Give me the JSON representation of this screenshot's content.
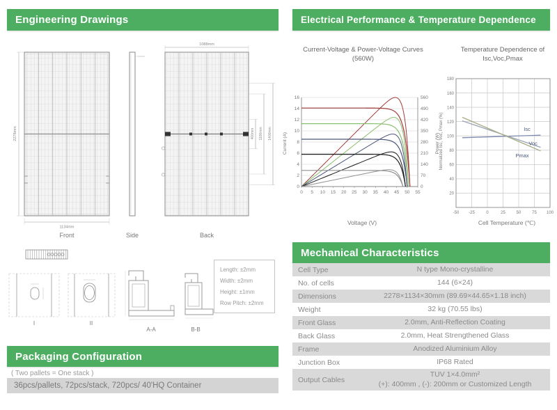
{
  "sections": {
    "engineering_drawings": {
      "title": "Engineering Drawings"
    },
    "electrical": {
      "title": "Electrical Performance & Temperature Dependence"
    },
    "mechanical": {
      "title": "Mechanical Characteristics"
    },
    "packaging": {
      "title": "Packaging Configuration",
      "note": "( Two pallets = One stack )",
      "detail": "36pcs/pallets, 72pcs/stack, 720pcs/ 40'HQ Container"
    }
  },
  "drawings": {
    "front": {
      "caption": "Front",
      "height_dim": "2278mm",
      "width_dim": "1134mm"
    },
    "side": {
      "caption": "Side"
    },
    "back": {
      "caption": "Back",
      "top_dim": "1088mm",
      "right_dims": [
        "400mm",
        "1100mm",
        "1400mm"
      ]
    },
    "details": {
      "i": "I",
      "ii": "II",
      "aa": "A-A",
      "bb": "B-B"
    },
    "tolerances": [
      "Length: ±2mm",
      "Width: ±2mm",
      "Height: ±1mm",
      "Row Pitch: ±2mm"
    ]
  },
  "mech_table": {
    "rows": [
      {
        "label": "Cell Type",
        "value": "N type Mono-crystalline"
      },
      {
        "label": "No. of cells",
        "value": "144 (6×24)"
      },
      {
        "label": "Dimensions",
        "value": "2278×1134×30mm (89.69×44.65×1.18 inch)"
      },
      {
        "label": "Weight",
        "value": "32 kg (70.55 lbs)"
      },
      {
        "label": "Front Glass",
        "value": "2.0mm, Anti-Reflection Coating"
      },
      {
        "label": "Back Glass",
        "value": "2.0mm, Heat Strengthened Glass"
      },
      {
        "label": "Frame",
        "value": "Anodized Aluminium Alloy"
      },
      {
        "label": "Junction Box",
        "value": "IP68 Rated"
      },
      {
        "label": "Output Cables",
        "value": "TUV  1×4.0mm²",
        "value2": "(+): 400mm , (-): 200mm or Customized Length"
      }
    ]
  },
  "chart_data": [
    {
      "type": "line",
      "title": "Current-Voltage & Power-Voltage Curves (560W)",
      "xlabel": "Voltage (V)",
      "ylabel_left": "Current (A)",
      "ylabel_right": "Power (W)",
      "xlim": [
        0,
        55
      ],
      "xticks": [
        0,
        5,
        10,
        15,
        20,
        25,
        30,
        35,
        40,
        45,
        50,
        55
      ],
      "ylim_left": [
        0,
        16
      ],
      "yticks_left": [
        0,
        2,
        4,
        6,
        8,
        10,
        12,
        14,
        16
      ],
      "ylim_right": [
        0,
        560
      ],
      "yticks_right": [
        0,
        70,
        140,
        210,
        280,
        350,
        420,
        490,
        560
      ],
      "grid": "horizontal",
      "series": [
        {
          "name": "pair1",
          "isc_a": 14.1,
          "voc_v": 51.3,
          "vmp_v": 42.3,
          "pmax_w": 560,
          "color": "#a03b3b"
        },
        {
          "name": "pair2",
          "isc_a": 11.3,
          "voc_v": 50.6,
          "vmp_v": 41.8,
          "pmax_w": 435,
          "color": "#8cbe6f"
        },
        {
          "name": "pair3",
          "isc_a": 8.5,
          "voc_v": 50.0,
          "vmp_v": 41.2,
          "pmax_w": 330,
          "color": "#4a5578"
        },
        {
          "name": "pair4",
          "isc_a": 5.8,
          "voc_v": 49.2,
          "vmp_v": 40.3,
          "pmax_w": 218,
          "color": "#1c1c1c"
        },
        {
          "name": "pair5",
          "isc_a": 2.9,
          "voc_v": 48.0,
          "vmp_v": 39.5,
          "pmax_w": 106,
          "color": "#909090"
        }
      ]
    },
    {
      "type": "line",
      "title": "Temperature Dependence of Isc,Voc,Pmax",
      "xlabel": "Cell Temperature (℃)",
      "ylabel": "Normalized Isc, Voc, Pmax (%)",
      "xlim": [
        -50,
        100
      ],
      "xticks": [
        -50,
        -25,
        0,
        25,
        50,
        75,
        100
      ],
      "ylim": [
        0,
        180
      ],
      "yticks": [
        20,
        40,
        60,
        80,
        100,
        120,
        140,
        160,
        180
      ],
      "grid": true,
      "label_color": "#4a5878",
      "series": [
        {
          "name": "Isc",
          "points": [
            [
              -40,
              97.5
            ],
            [
              85,
              101
            ]
          ],
          "color": "#7e8bb0",
          "label_at": [
            58,
            107
          ]
        },
        {
          "name": "Voc",
          "points": [
            [
              -40,
              121
            ],
            [
              85,
              84
            ]
          ],
          "color": "#9aa3b5",
          "label_at": [
            66,
            87
          ]
        },
        {
          "name": "Pmax",
          "points": [
            [
              -40,
              126
            ],
            [
              85,
              79
            ]
          ],
          "color": "#a7ad85",
          "label_at": [
            45,
            70
          ]
        }
      ]
    }
  ]
}
